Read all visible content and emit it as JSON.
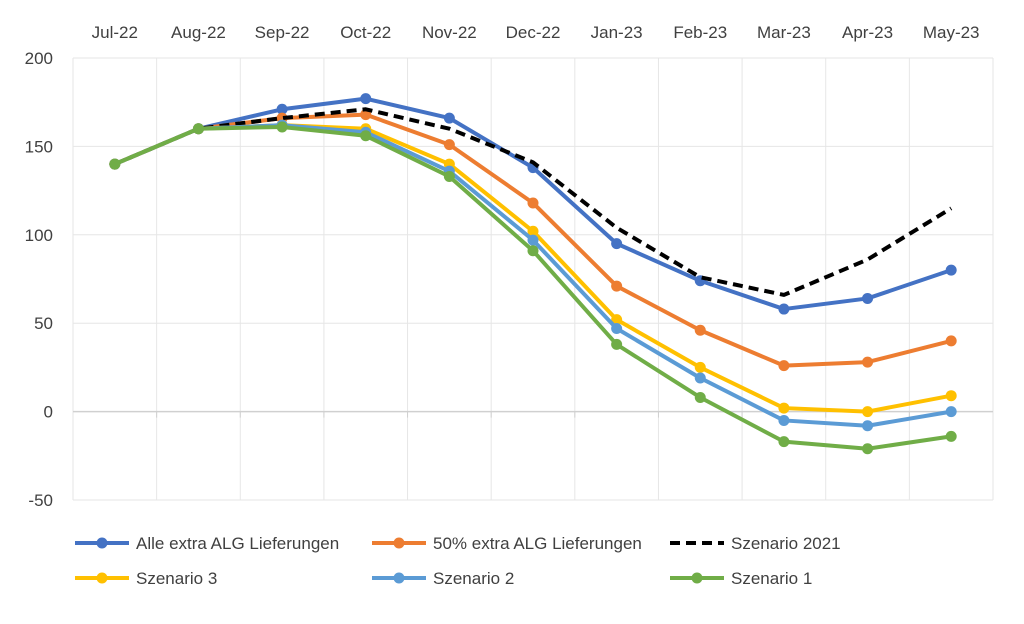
{
  "chart_data": {
    "type": "line",
    "title": "",
    "xlabel": "",
    "ylabel": "",
    "x": [
      "Jul-22",
      "Aug-22",
      "Sep-22",
      "Oct-22",
      "Nov-22",
      "Dec-22",
      "Jan-23",
      "Feb-23",
      "Mar-23",
      "Apr-23",
      "May-23"
    ],
    "ylim": [
      -50,
      200
    ],
    "yticks": [
      -50,
      0,
      50,
      100,
      150,
      200
    ],
    "x_axis_position": "top",
    "grid": true,
    "legend_position": "bottom",
    "series": [
      {
        "name": "Alle extra ALG Lieferungen",
        "color": "#4472C4",
        "style": "solid",
        "markers": true,
        "values": [
          140,
          160,
          171,
          177,
          166,
          138,
          95,
          74,
          58,
          64,
          80
        ]
      },
      {
        "name": "50% extra ALG Lieferungen",
        "color": "#ED7D31",
        "style": "solid",
        "markers": true,
        "values": [
          140,
          160,
          166,
          168,
          151,
          118,
          71,
          46,
          26,
          28,
          40
        ]
      },
      {
        "name": "Szenario 2021",
        "color": "#000000",
        "style": "dashed",
        "markers": false,
        "values": [
          140,
          160,
          166,
          171,
          160,
          141,
          104,
          76,
          66,
          86,
          115
        ]
      },
      {
        "name": "Szenario 3",
        "color": "#FFC000",
        "style": "solid",
        "markers": true,
        "values": [
          140,
          160,
          162,
          160,
          140,
          102,
          52,
          25,
          2,
          0,
          9
        ]
      },
      {
        "name": "Szenario 2",
        "color": "#5B9BD5",
        "style": "solid",
        "markers": true,
        "values": [
          140,
          160,
          162,
          158,
          136,
          97,
          47,
          19,
          -5,
          -8,
          0
        ]
      },
      {
        "name": "Szenario 1",
        "color": "#70AD47",
        "style": "solid",
        "markers": true,
        "values": [
          140,
          160,
          161,
          156,
          133,
          91,
          38,
          8,
          -17,
          -21,
          -14
        ]
      }
    ]
  }
}
